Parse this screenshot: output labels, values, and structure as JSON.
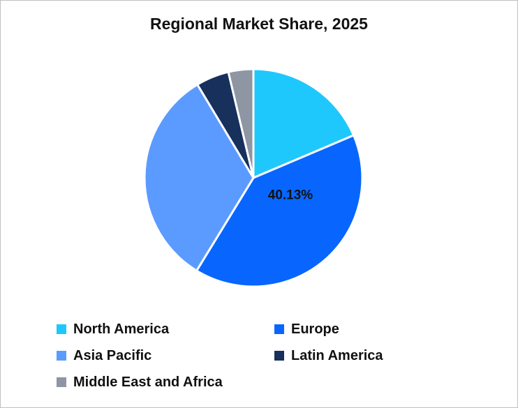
{
  "chart_data": {
    "type": "pie",
    "title": "Regional Market Share, 2025",
    "slices": [
      {
        "name": "North America",
        "value": 18.6,
        "color": "#1fc8fc"
      },
      {
        "name": "Europe",
        "value": 40.13,
        "color": "#0866ff"
      },
      {
        "name": "Asia Pacific",
        "value": 32.67,
        "color": "#5b9bff"
      },
      {
        "name": "Latin America",
        "value": 4.9,
        "color": "#17305c"
      },
      {
        "name": "Middle East and Africa",
        "value": 3.7,
        "color": "#8e95a3"
      }
    ],
    "data_labels": [
      {
        "slice": "Europe",
        "text": "40.13%"
      }
    ],
    "legend_placement": "bottom",
    "start_angle_deg": 0,
    "direction": "clockwise"
  }
}
